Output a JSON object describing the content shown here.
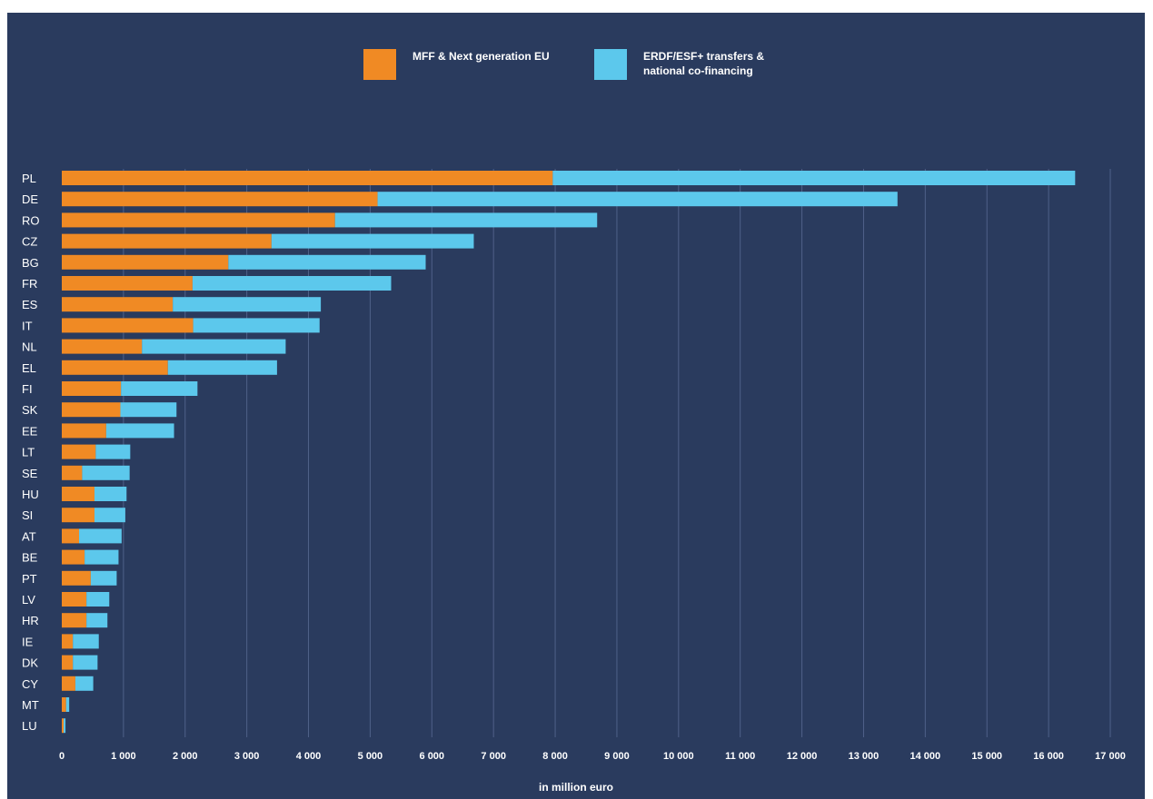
{
  "colors": {
    "background": "#2a3b5e",
    "series1": "#f08a24",
    "series2": "#5cc8ec",
    "grid": "#4f6189",
    "text": "#ffffff"
  },
  "legend": {
    "series1": "MFF & Next generation EU",
    "series2": "ERDF/ESF+ transfers &\nnational co-financing"
  },
  "chart_data": {
    "type": "bar",
    "orientation": "horizontal",
    "stacked": true,
    "xlabel": "in million euro",
    "xlim": [
      0,
      17000
    ],
    "xticks": [
      0,
      1000,
      2000,
      3000,
      4000,
      5000,
      6000,
      7000,
      8000,
      9000,
      10000,
      11000,
      12000,
      13000,
      14000,
      15000,
      16000,
      17000
    ],
    "xtick_labels": [
      "0",
      "1 000",
      "2 000",
      "3 000",
      "4 000",
      "5 000",
      "6 000",
      "7 000",
      "8 000",
      "9 000",
      "10 000",
      "11 000",
      "12 000",
      "13 000",
      "14 000",
      "15 000",
      "16 000",
      "17 000"
    ],
    "grid": true,
    "legend_position": "top-center",
    "categories": [
      "PL",
      "DE",
      "RO",
      "CZ",
      "BG",
      "FR",
      "ES",
      "IT",
      "NL",
      "EL",
      "FI",
      "SK",
      "EE",
      "LT",
      "SE",
      "HU",
      "SI",
      "AT",
      "BE",
      "PT",
      "LV",
      "HR",
      "IE",
      "DK",
      "CY",
      "MT",
      "LU"
    ],
    "series": [
      {
        "name": "MFF & Next generation EU",
        "values": [
          7960,
          5120,
          4430,
          3400,
          2700,
          2120,
          1800,
          2130,
          1300,
          1720,
          960,
          950,
          720,
          550,
          330,
          530,
          530,
          280,
          370,
          470,
          400,
          400,
          180,
          180,
          220,
          70,
          30
        ]
      },
      {
        "name": "ERDF/ESF+ transfers & national co-financing",
        "values": [
          8470,
          8430,
          4250,
          3280,
          3200,
          3220,
          2400,
          2050,
          2330,
          1770,
          1240,
          910,
          1100,
          560,
          770,
          520,
          500,
          690,
          550,
          420,
          370,
          340,
          420,
          400,
          290,
          50,
          30
        ]
      }
    ]
  }
}
